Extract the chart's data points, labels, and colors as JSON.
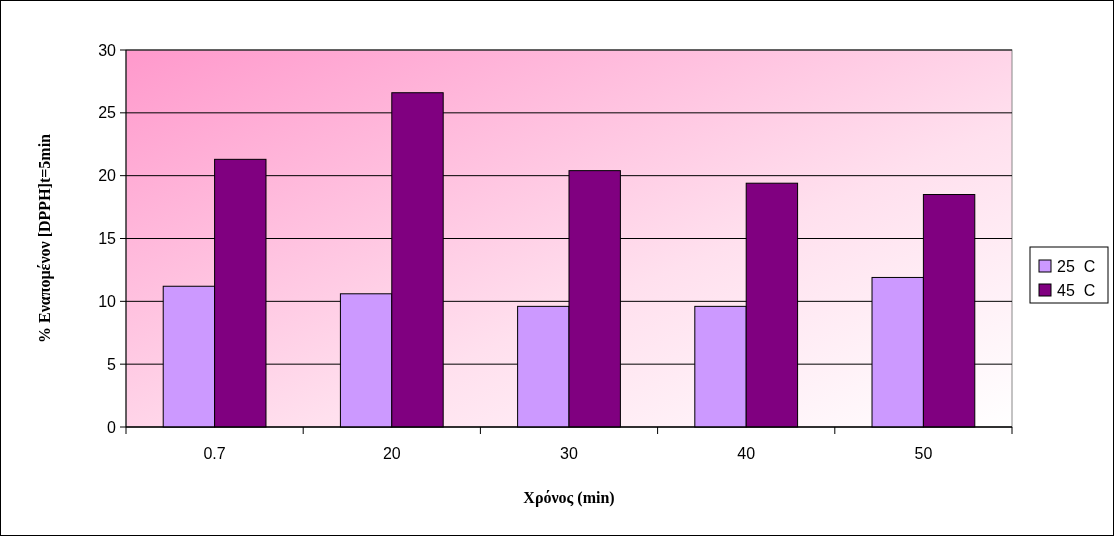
{
  "chart_data": {
    "type": "bar",
    "xlabel": "Χρόνος (min)",
    "ylabel": "% Εναπομένον [DPPH]t=5min",
    "categories": [
      "0.7",
      "20",
      "30",
      "40",
      "50"
    ],
    "series": [
      {
        "name": "25  C",
        "color": "#cc99ff",
        "values": [
          11.2,
          10.6,
          9.6,
          9.6,
          11.9
        ]
      },
      {
        "name": "45  C",
        "color": "#800080",
        "values": [
          21.3,
          26.6,
          20.4,
          19.4,
          18.5
        ]
      }
    ],
    "ylim": [
      0,
      30
    ],
    "yticks": [
      0,
      5,
      10,
      15,
      20,
      25,
      30
    ],
    "grid": "y",
    "legend": "right"
  }
}
